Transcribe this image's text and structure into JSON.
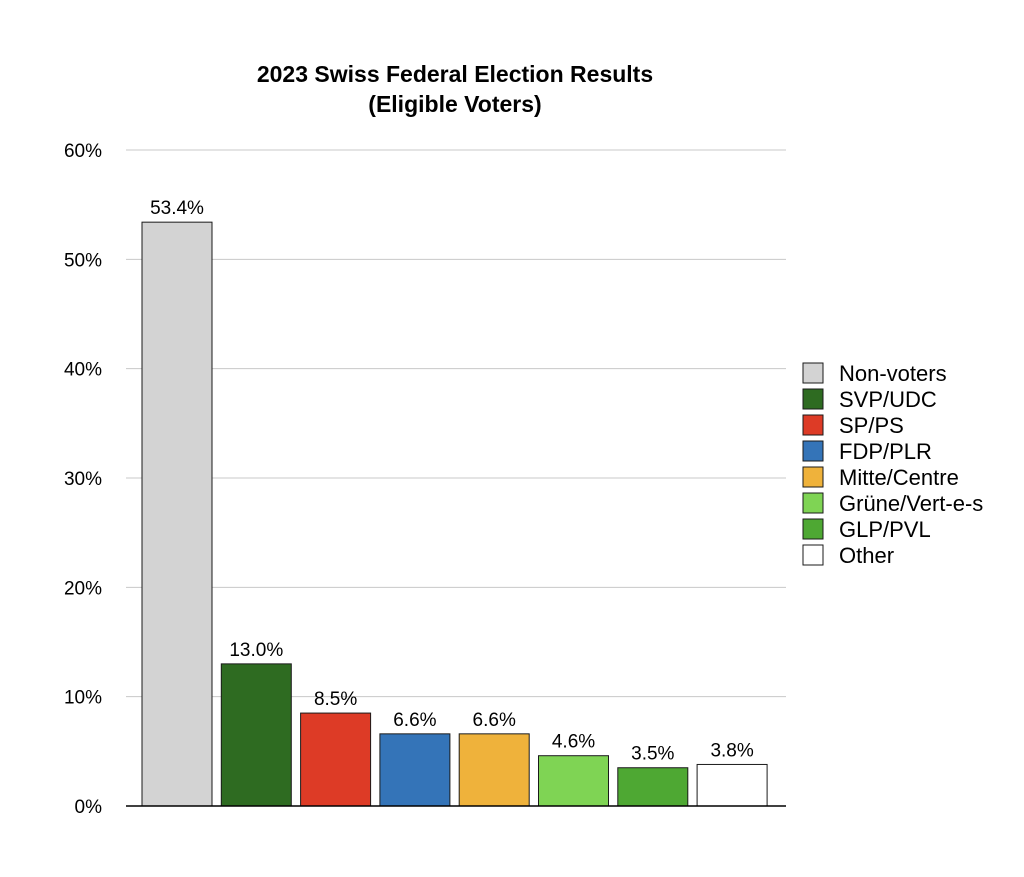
{
  "chart_data": {
    "type": "bar",
    "title": "2023 Swiss Federal Election Results",
    "subtitle": "(Eligible Voters)",
    "categories": [
      "Non-voters",
      "SVP/UDC",
      "SP/PS",
      "FDP/PLR",
      "Mitte/Centre",
      "Grüne/Vert-e-s",
      "GLP/PVL",
      "Other"
    ],
    "values": [
      53.4,
      13.0,
      8.5,
      6.6,
      6.6,
      4.6,
      3.5,
      3.8
    ],
    "data_labels": [
      "53.4%",
      "13.0%",
      "8.5%",
      "6.6%",
      "6.6%",
      "4.6%",
      "3.5%",
      "3.8%"
    ],
    "colors": [
      "#d3d3d3",
      "#2e6b21",
      "#dd3b26",
      "#3474b8",
      "#efb23b",
      "#7fd454",
      "#4ea833",
      "#ffffff"
    ],
    "xlabel": "",
    "ylabel": "",
    "ylim": [
      0,
      60
    ],
    "yticks": [
      0,
      10,
      20,
      30,
      40,
      50,
      60
    ],
    "ytick_labels": [
      "0%",
      "10%",
      "20%",
      "30%",
      "40%",
      "50%",
      "60%"
    ],
    "grid": true,
    "legend_position": "right",
    "legend": [
      "Non-voters",
      "SVP/UDC",
      "SP/PS",
      "FDP/PLR",
      "Mitte/Centre",
      "Grüne/Vert-e-s",
      "GLP/PVL",
      "Other"
    ]
  }
}
